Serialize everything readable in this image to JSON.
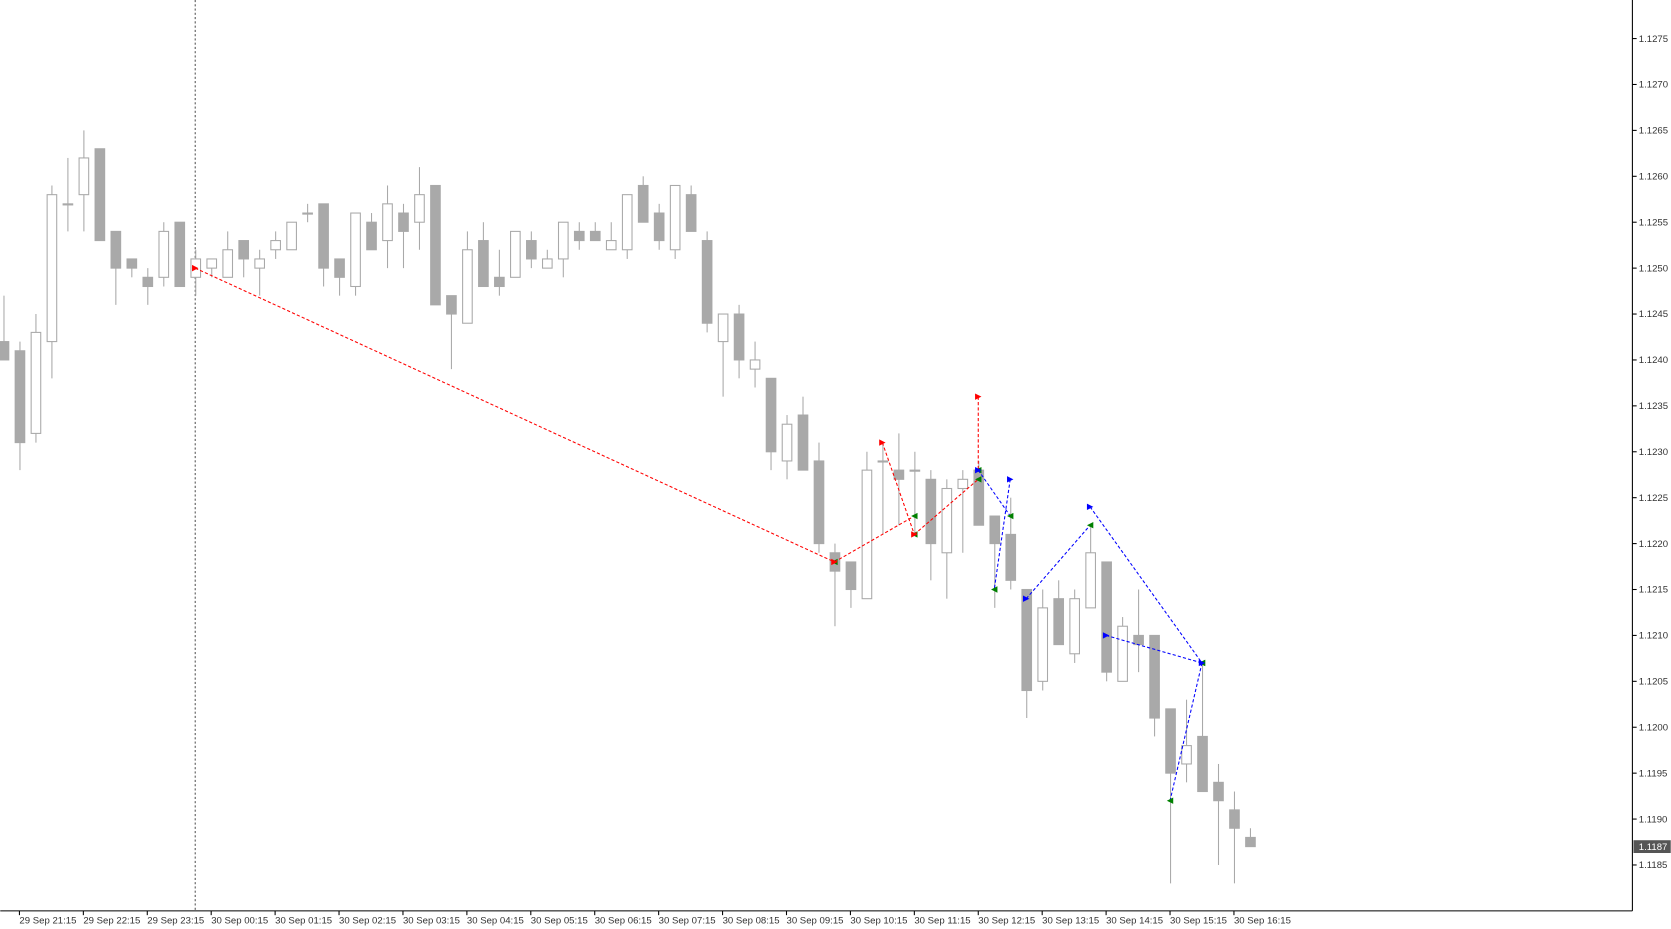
{
  "chart_data": {
    "type": "candlestick",
    "categories": [
      null,
      "29 Sep 21:15",
      null,
      null,
      null,
      "29 Sep 22:15",
      null,
      null,
      null,
      "29 Sep 23:15",
      null,
      null,
      null,
      "30 Sep 00:15",
      null,
      null,
      null,
      "30 Sep 01:15",
      null,
      null,
      null,
      "30 Sep 02:15",
      null,
      null,
      null,
      "30 Sep 03:15",
      null,
      null,
      null,
      "30 Sep 04:15",
      null,
      null,
      null,
      "30 Sep 05:15",
      null,
      null,
      null,
      "30 Sep 06:15",
      null,
      null,
      null,
      "30 Sep 07:15",
      null,
      null,
      null,
      "30 Sep 08:15",
      null,
      null,
      null,
      "30 Sep 09:15",
      null,
      null,
      null,
      "30 Sep 10:15",
      null,
      null,
      null,
      "30 Sep 11:15",
      null,
      null,
      null,
      "30 Sep 12:15",
      null,
      null,
      null,
      "30 Sep 13:15",
      null,
      null,
      null,
      "30 Sep 14:15",
      null,
      null,
      null,
      "30 Sep 15:15",
      null,
      null,
      null,
      "30 Sep 16:15",
      null
    ],
    "open": [
      1.1242,
      1.1241,
      1.1232,
      1.1242,
      1.1257,
      1.1258,
      1.1263,
      1.1254,
      1.1251,
      1.1249,
      1.1249,
      1.1255,
      1.1249,
      1.125,
      1.1249,
      1.1253,
      1.125,
      1.1252,
      1.1252,
      1.1256,
      1.1257,
      1.1251,
      1.1248,
      1.1255,
      1.1253,
      1.1256,
      1.1255,
      1.1259,
      1.1247,
      1.1244,
      1.1253,
      1.1249,
      1.1249,
      1.1253,
      1.125,
      1.1251,
      1.1254,
      1.1254,
      1.1252,
      1.1252,
      1.1259,
      1.1256,
      1.1252,
      1.1258,
      1.1253,
      1.1242,
      1.1245,
      1.1239,
      1.1238,
      1.1229,
      1.1234,
      1.1229,
      1.1219,
      1.1218,
      1.1214,
      1.1229,
      1.1228,
      1.1228,
      1.1227,
      1.1219,
      1.1226,
      1.1228,
      1.1223,
      1.1221,
      1.1215,
      1.1205,
      1.1214,
      1.1208,
      1.1213,
      1.1218,
      1.1205,
      1.121,
      1.121,
      1.1202,
      1.1196,
      1.1199,
      1.1194,
      1.1191,
      1.1188
    ],
    "high": [
      1.1247,
      1.1242,
      1.1245,
      1.1259,
      1.1262,
      1.1265,
      1.1263,
      1.1254,
      1.1251,
      1.125,
      1.1255,
      1.1255,
      1.1252,
      1.1251,
      1.1254,
      1.1253,
      1.1252,
      1.1254,
      1.1255,
      1.1257,
      1.1257,
      1.1251,
      1.1256,
      1.1256,
      1.1259,
      1.1257,
      1.1261,
      1.1259,
      1.1247,
      1.1254,
      1.1255,
      1.1252,
      1.1254,
      1.1254,
      1.1252,
      1.1255,
      1.1255,
      1.1255,
      1.1255,
      1.1258,
      1.126,
      1.1257,
      1.1259,
      1.1259,
      1.1254,
      1.1245,
      1.1246,
      1.1242,
      1.1238,
      1.1234,
      1.1236,
      1.1231,
      1.122,
      1.1218,
      1.123,
      1.1231,
      1.1232,
      1.123,
      1.1228,
      1.1227,
      1.1228,
      1.1229,
      1.1223,
      1.1225,
      1.1215,
      1.1215,
      1.1216,
      1.1215,
      1.1222,
      1.1218,
      1.1212,
      1.1215,
      1.121,
      1.1202,
      1.1203,
      1.1207,
      1.1196,
      1.1193,
      1.1189
    ],
    "low": [
      1.124,
      1.1228,
      1.1231,
      1.1238,
      1.1254,
      1.1254,
      1.1253,
      1.1246,
      1.1249,
      1.1246,
      1.1248,
      1.1248,
      1.1247,
      1.1249,
      1.1249,
      1.1249,
      1.1247,
      1.1251,
      1.1252,
      1.1255,
      1.1248,
      1.1247,
      1.1247,
      1.1252,
      1.125,
      1.125,
      1.1252,
      1.1246,
      1.1239,
      1.1244,
      1.1248,
      1.1247,
      1.1249,
      1.125,
      1.125,
      1.1249,
      1.1252,
      1.1253,
      1.1252,
      1.1251,
      1.1255,
      1.1252,
      1.1251,
      1.1254,
      1.1243,
      1.1236,
      1.1238,
      1.1237,
      1.1228,
      1.1227,
      1.1228,
      1.1219,
      1.1211,
      1.1213,
      1.1214,
      1.1221,
      1.1222,
      1.1221,
      1.1216,
      1.1214,
      1.1219,
      1.1222,
      1.1213,
      1.1215,
      1.1201,
      1.1204,
      1.1209,
      1.1207,
      1.1213,
      1.1205,
      1.1205,
      1.1206,
      1.1199,
      1.1183,
      1.1194,
      1.1193,
      1.1185,
      1.1183,
      1.1187
    ],
    "close": [
      1.124,
      1.1231,
      1.1243,
      1.1258,
      1.1257,
      1.1262,
      1.1253,
      1.125,
      1.125,
      1.1248,
      1.1254,
      1.1248,
      1.1251,
      1.1251,
      1.1252,
      1.1251,
      1.1251,
      1.1253,
      1.1255,
      1.1256,
      1.125,
      1.1249,
      1.1256,
      1.1252,
      1.1257,
      1.1254,
      1.1258,
      1.1246,
      1.1245,
      1.1252,
      1.1248,
      1.1248,
      1.1254,
      1.1251,
      1.1251,
      1.1255,
      1.1253,
      1.1253,
      1.1253,
      1.1258,
      1.1255,
      1.1253,
      1.1259,
      1.1254,
      1.1244,
      1.1245,
      1.124,
      1.124,
      1.123,
      1.1233,
      1.1228,
      1.122,
      1.1217,
      1.1215,
      1.1228,
      1.1229,
      1.1227,
      1.1228,
      1.122,
      1.1226,
      1.1227,
      1.1222,
      1.122,
      1.1216,
      1.1204,
      1.1213,
      1.1209,
      1.1214,
      1.1219,
      1.1206,
      1.1211,
      1.1209,
      1.1201,
      1.1195,
      1.1198,
      1.1193,
      1.1192,
      1.1189,
      1.1187
    ],
    "up_color": "#ffffff",
    "down_color": "#a9a9a9",
    "wick_color": "#a9a9a9",
    "ylim": [
      1.118,
      1.12792
    ],
    "yticks": [
      1.1185,
      {
        "value": 1.119,
        "label": "1.1190"
      },
      1.1195,
      {
        "value": 1.12,
        "label": "1.1200"
      },
      1.1205,
      {
        "value": 1.121,
        "label": "1.1210"
      },
      1.1215,
      {
        "value": 1.122,
        "label": "1.1220"
      },
      1.1225,
      {
        "value": 1.123,
        "label": "1.1230"
      },
      1.1235,
      {
        "value": 1.124,
        "label": "1.1240"
      },
      1.1245,
      {
        "value": 1.125,
        "label": "1.1250"
      },
      1.1255,
      {
        "value": 1.126,
        "label": "1.1260"
      },
      1.1265,
      {
        "value": 1.127,
        "label": "1.1270"
      },
      1.1275
    ],
    "vline": 12,
    "trades": [
      {
        "color": "#ff0000",
        "from": [
          12,
          1.125
        ],
        "to": [
          52,
          1.1218
        ]
      },
      {
        "color": "#ff0000",
        "from": [
          52,
          1.1218
        ],
        "to": [
          57,
          1.1223
        ]
      },
      {
        "color": "#ff0000",
        "from": [
          55,
          1.1231
        ],
        "to": [
          57,
          1.1221
        ]
      },
      {
        "color": "#ff0000",
        "from": [
          57,
          1.1221
        ],
        "to": [
          61,
          1.1227
        ]
      },
      {
        "color": "#ff0000",
        "from": [
          61,
          1.1236
        ],
        "to": [
          61,
          1.1228
        ]
      },
      {
        "color": "#0000ff",
        "from": [
          61,
          1.1228
        ],
        "to": [
          63,
          1.1223
        ]
      },
      {
        "color": "#0000ff",
        "from": [
          63,
          1.1227
        ],
        "to": [
          62,
          1.1215
        ]
      },
      {
        "color": "#0000ff",
        "from": [
          64,
          1.1214
        ],
        "to": [
          68,
          1.1222
        ]
      },
      {
        "color": "#0000ff",
        "from": [
          68,
          1.1224
        ],
        "to": [
          75,
          1.1207
        ]
      },
      {
        "color": "#0000ff",
        "from": [
          69,
          1.121
        ],
        "to": [
          75,
          1.1207
        ]
      },
      {
        "color": "#0000ff",
        "from": [
          75,
          1.1207
        ],
        "to": [
          73,
          1.1192
        ]
      }
    ]
  }
}
